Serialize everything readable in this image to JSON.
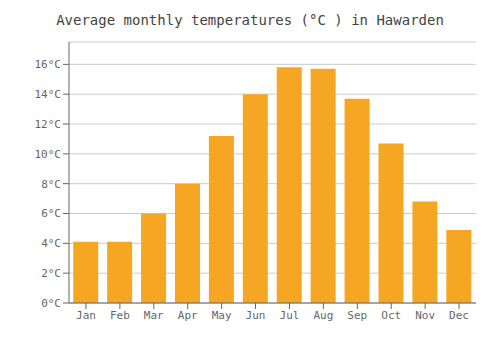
{
  "chart_data": {
    "type": "bar",
    "title": "Average monthly temperatures (°C ) in Hawarden",
    "categories": [
      "Jan",
      "Feb",
      "Mar",
      "Apr",
      "May",
      "Jun",
      "Jul",
      "Aug",
      "Sep",
      "Oct",
      "Nov",
      "Dec"
    ],
    "values": [
      4.1,
      4.1,
      6.0,
      8.0,
      11.2,
      14.0,
      15.8,
      15.7,
      13.7,
      10.7,
      6.8,
      4.9
    ],
    "color": "#F5A623",
    "ylim": [
      0,
      17.5
    ],
    "yticks": [
      {
        "value": 0,
        "label": "0°C"
      },
      {
        "value": 2,
        "label": "2°C"
      },
      {
        "value": 4,
        "label": "4°C"
      },
      {
        "value": 6,
        "label": "6°C"
      },
      {
        "value": 8,
        "label": "8°C"
      },
      {
        "value": 10,
        "label": "10°C"
      },
      {
        "value": 12,
        "label": "12°C"
      },
      {
        "value": 14,
        "label": "14°C"
      },
      {
        "value": 16,
        "label": "16°C"
      }
    ],
    "grid": true
  }
}
